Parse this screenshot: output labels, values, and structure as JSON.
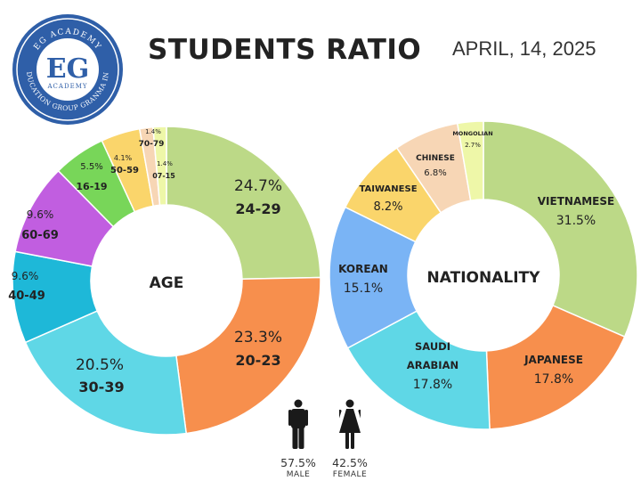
{
  "header": {
    "title": "STUDENTS RATIO",
    "date": "APRIL, 14, 2025"
  },
  "logo": {
    "main": "EG",
    "top_arc": "EG ACADEMY",
    "bottom_arc": "EDUCATION GROUP GRANMA INC",
    "inner": "ACADEMY"
  },
  "colors": {
    "green": "#bcd987",
    "orange": "#f78f4d",
    "cyan": "#5fd7e6",
    "teal": "#1eb8d8",
    "purple": "#c15ee0",
    "lime": "#78d659",
    "yellow": "#fad56b",
    "peach": "#f7d6b5",
    "pale_yellow": "#eef7a8",
    "blue": "#7ab4f5",
    "logo_blue": "#2f5fa8"
  },
  "chart_data": [
    {
      "type": "pie",
      "center_label": "AGE",
      "slices": [
        {
          "label": "24-29",
          "value": 24.7,
          "display": "24.7%",
          "color": "#bcd987"
        },
        {
          "label": "20-23",
          "value": 23.3,
          "display": "23.3%",
          "color": "#f78f4d"
        },
        {
          "label": "30-39",
          "value": 20.5,
          "display": "20.5%",
          "color": "#5fd7e6"
        },
        {
          "label": "40-49",
          "value": 9.6,
          "display": "9.6%",
          "color": "#1eb8d8"
        },
        {
          "label": "60-69",
          "value": 9.6,
          "display": "9.6%",
          "color": "#c15ee0"
        },
        {
          "label": "16-19",
          "value": 5.5,
          "display": "5.5%",
          "color": "#78d659"
        },
        {
          "label": "50-59",
          "value": 4.1,
          "display": "4.1%",
          "color": "#fad56b"
        },
        {
          "label": "70-79",
          "value": 1.4,
          "display": "1.4%",
          "color": "#f7d6b5"
        },
        {
          "label": "07-15",
          "value": 1.4,
          "display": "1.4%",
          "color": "#eef7a8"
        }
      ]
    },
    {
      "type": "pie",
      "center_label": "NATIONALITY",
      "slices": [
        {
          "label": "VIETNAMESE",
          "value": 31.5,
          "display": "31.5%",
          "color": "#bcd987"
        },
        {
          "label": "JAPANESE",
          "value": 17.8,
          "display": "17.8%",
          "color": "#f78f4d"
        },
        {
          "label": "SAUDI ARABIAN",
          "value": 17.8,
          "display": "17.8%",
          "color": "#5fd7e6"
        },
        {
          "label": "KOREAN",
          "value": 15.1,
          "display": "15.1%",
          "color": "#7ab4f5"
        },
        {
          "label": "TAIWANESE",
          "value": 8.2,
          "display": "8.2%",
          "color": "#fad56b"
        },
        {
          "label": "CHINESE",
          "value": 6.8,
          "display": "6.8%",
          "color": "#f7d6b5"
        },
        {
          "label": "MONGOLIAN",
          "value": 2.7,
          "display": "2.7%",
          "color": "#eef7a8"
        }
      ]
    }
  ],
  "gender": {
    "male": {
      "percent": "57.5%",
      "label": "MALE",
      "icon": "male-icon"
    },
    "female": {
      "percent": "42.5%",
      "label": "FEMALE",
      "icon": "female-icon"
    }
  }
}
